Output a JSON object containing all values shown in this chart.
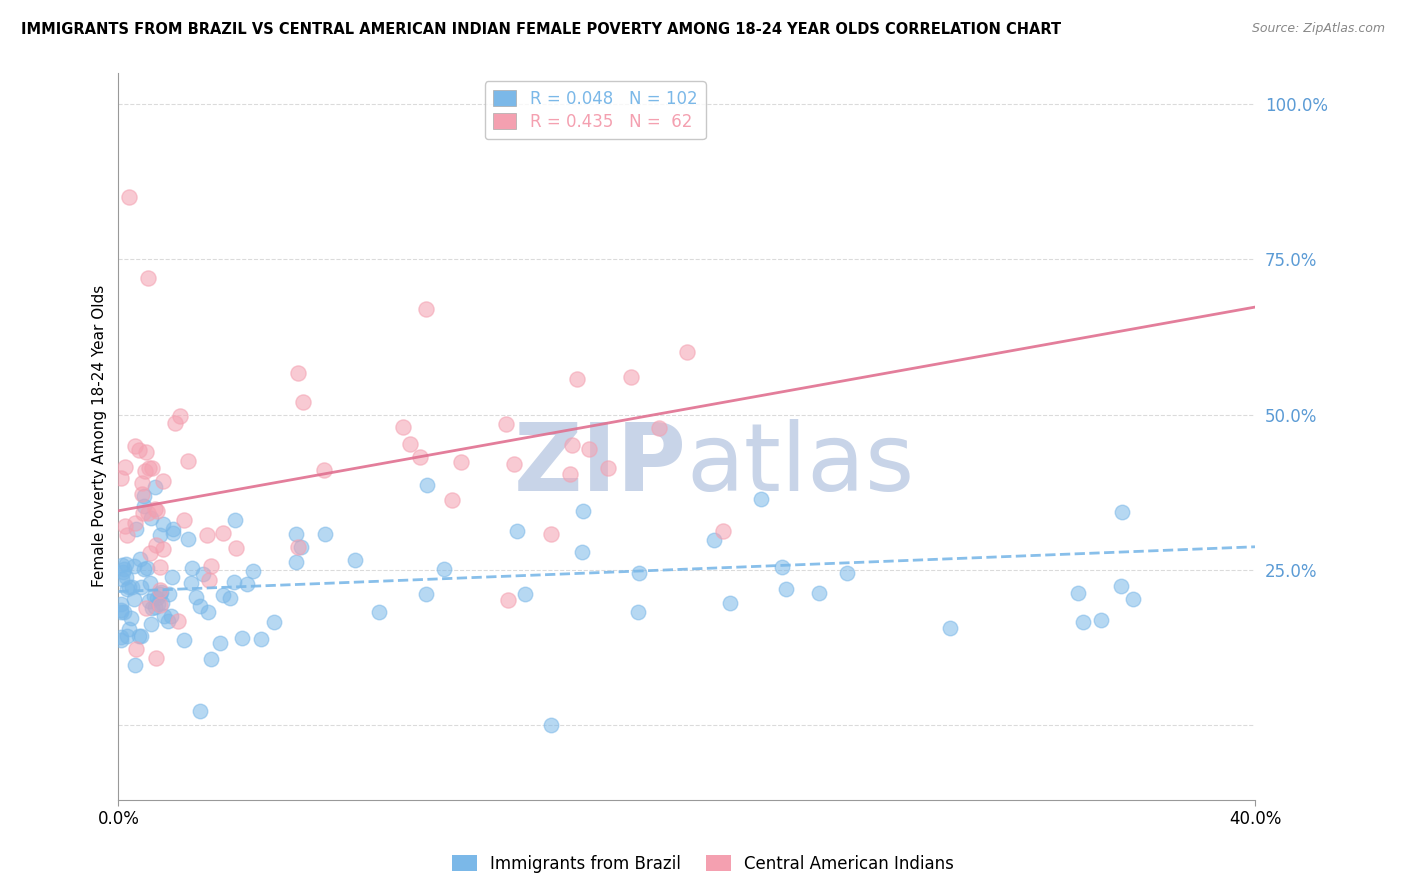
{
  "title": "IMMIGRANTS FROM BRAZIL VS CENTRAL AMERICAN INDIAN FEMALE POVERTY AMONG 18-24 YEAR OLDS CORRELATION CHART",
  "source": "Source: ZipAtlas.com",
  "ylabel": "Female Poverty Among 18-24 Year Olds",
  "x_min": 0.0,
  "x_max": 0.4,
  "y_min": -0.12,
  "y_max": 1.05,
  "series1_color": "#7bb8e8",
  "series2_color": "#f4a0b0",
  "series1_label": "Immigrants from Brazil",
  "series2_label": "Central American Indians",
  "series1_R": 0.048,
  "series1_N": 102,
  "series2_R": 0.435,
  "series2_N": 62,
  "watermark_zip": "ZIP",
  "watermark_atlas": "atlas",
  "watermark_color": "#c8d4e8",
  "background_color": "#ffffff",
  "grid_color": "#cccccc",
  "trend1_intercept": 0.215,
  "trend1_slope": 0.18,
  "trend2_intercept": 0.345,
  "trend2_slope": 0.82,
  "right_tick_color": "#5b9bd5",
  "legend_r1_color": "#5b9bd5",
  "legend_n1_color": "#e05c7a",
  "legend_r2_color": "#5b9bd5",
  "legend_n2_color": "#e05c7a"
}
